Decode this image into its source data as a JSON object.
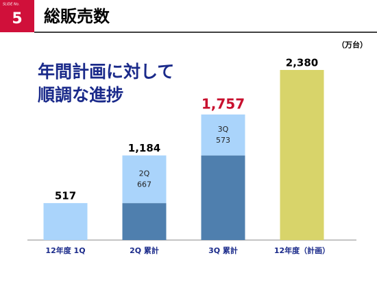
{
  "header": {
    "slide_label": "SLIDE No.",
    "slide_number": "5",
    "title": "総販売数"
  },
  "headline": [
    "年間計画に対して",
    "順調な進捗"
  ],
  "chart_data": {
    "type": "stacked_bar",
    "unit": "（万台）",
    "categories": [
      "12年度 1Q",
      "2Q 累計",
      "3Q 累計",
      "12年度（計画）"
    ],
    "series": [
      {
        "color": "#4f7fae",
        "values": [
          null,
          517,
          1184,
          null
        ]
      },
      {
        "color": "#aad4fb",
        "values": [
          517,
          667,
          573,
          null
        ],
        "segment_tags": [
          null,
          "2Q",
          "3Q",
          null
        ]
      },
      {
        "color": "#d8d46a",
        "values": [
          null,
          null,
          null,
          2380
        ]
      }
    ],
    "totals": {
      "values": [
        517,
        1184,
        1757,
        2380
      ],
      "value_labels": [
        "517",
        "1,184",
        "1,757",
        "2,380"
      ],
      "highlight_index": 2,
      "highlight_color": "#c8102e"
    }
  }
}
